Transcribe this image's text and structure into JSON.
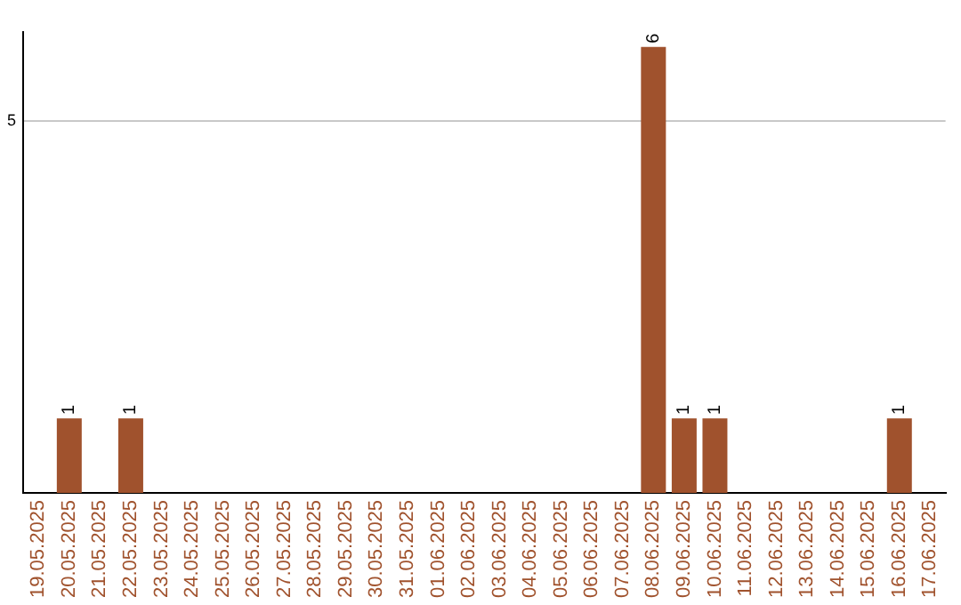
{
  "chart_data": {
    "type": "bar",
    "categories": [
      "19.05.2025",
      "20.05.2025",
      "21.05.2025",
      "22.05.2025",
      "23.05.2025",
      "24.05.2025",
      "25.05.2025",
      "26.05.2025",
      "27.05.2025",
      "28.05.2025",
      "29.05.2025",
      "30.05.2025",
      "31.05.2025",
      "01.06.2025",
      "02.06.2025",
      "03.06.2025",
      "04.06.2025",
      "05.06.2025",
      "06.06.2025",
      "07.06.2025",
      "08.06.2025",
      "09.06.2025",
      "10.06.2025",
      "11.06.2025",
      "12.06.2025",
      "13.06.2025",
      "14.06.2025",
      "15.06.2025",
      "16.06.2025",
      "17.06.2025"
    ],
    "values": [
      0,
      1,
      0,
      1,
      0,
      0,
      0,
      0,
      0,
      0,
      0,
      0,
      0,
      0,
      0,
      0,
      0,
      0,
      0,
      0,
      6,
      1,
      1,
      0,
      0,
      0,
      0,
      0,
      1,
      0
    ],
    "value_labels": [
      null,
      "1",
      null,
      "1",
      null,
      null,
      null,
      null,
      null,
      null,
      null,
      null,
      null,
      null,
      null,
      null,
      null,
      null,
      null,
      null,
      "6",
      "1",
      "1",
      null,
      null,
      null,
      null,
      null,
      "1",
      null
    ],
    "color": "#a0522d",
    "ylim": [
      0,
      6.2
    ],
    "yticks": [
      5
    ],
    "grid": "y",
    "legend": false
  }
}
